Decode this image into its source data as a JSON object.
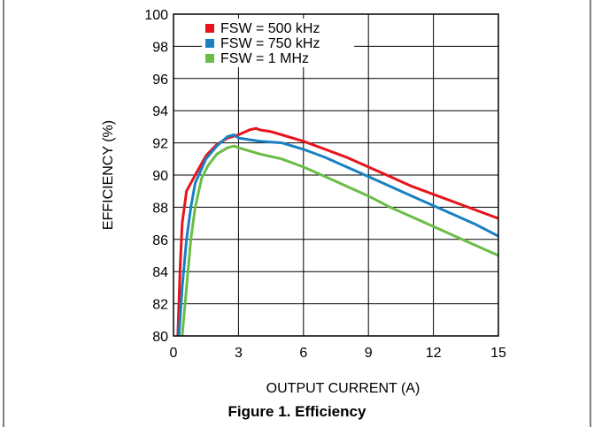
{
  "figure_caption": "Figure 1. Efficiency",
  "colors": {
    "fsw_500khz": "#e8141b",
    "fsw_750khz": "#1a81c1",
    "fsw_1mhz": "#6abd45",
    "grid": "#000000",
    "border": "#000000"
  },
  "chart_data": {
    "type": "line",
    "title": "",
    "xlabel": "OUTPUT CURRENT (A)",
    "ylabel": "EFFICIENCY (%)",
    "xlim": [
      0,
      15
    ],
    "ylim": [
      80,
      100
    ],
    "xticks": [
      0,
      3,
      6,
      9,
      12,
      15
    ],
    "yticks": [
      80,
      82,
      84,
      86,
      88,
      90,
      92,
      94,
      96,
      98,
      100
    ],
    "grid": true,
    "legend_position": "top-left",
    "series": [
      {
        "name": "FSW = 500 kHz",
        "color": "#e8141b",
        "points": [
          [
            0.2,
            80
          ],
          [
            0.3,
            84
          ],
          [
            0.4,
            87
          ],
          [
            0.6,
            89
          ],
          [
            1.0,
            90
          ],
          [
            1.5,
            91.2
          ],
          [
            2.0,
            91.9
          ],
          [
            2.5,
            92.3
          ],
          [
            3.0,
            92.5
          ],
          [
            3.5,
            92.8
          ],
          [
            3.8,
            92.9
          ],
          [
            4.0,
            92.8
          ],
          [
            4.5,
            92.7
          ],
          [
            5,
            92.5
          ],
          [
            6,
            92.1
          ],
          [
            7,
            91.6
          ],
          [
            8,
            91.1
          ],
          [
            9,
            90.5
          ],
          [
            10,
            89.9
          ],
          [
            11,
            89.3
          ],
          [
            12,
            88.8
          ],
          [
            13,
            88.3
          ],
          [
            14,
            87.8
          ],
          [
            15,
            87.3
          ]
        ]
      },
      {
        "name": "FSW = 750 kHz",
        "color": "#1a81c1",
        "points": [
          [
            0.25,
            80
          ],
          [
            0.4,
            83
          ],
          [
            0.6,
            86
          ],
          [
            0.8,
            88
          ],
          [
            1.0,
            89.5
          ],
          [
            1.5,
            91
          ],
          [
            2.0,
            91.8
          ],
          [
            2.5,
            92.4
          ],
          [
            2.8,
            92.5
          ],
          [
            3.0,
            92.3
          ],
          [
            3.5,
            92.2
          ],
          [
            4,
            92.1
          ],
          [
            5,
            92
          ],
          [
            6,
            91.6
          ],
          [
            7,
            91.1
          ],
          [
            8,
            90.5
          ],
          [
            9,
            89.9
          ],
          [
            10,
            89.3
          ],
          [
            11,
            88.7
          ],
          [
            12,
            88.1
          ],
          [
            13,
            87.5
          ],
          [
            14,
            86.9
          ],
          [
            15,
            86.2
          ]
        ]
      },
      {
        "name": "FSW = 1 MHz",
        "color": "#6abd45",
        "points": [
          [
            0.4,
            80
          ],
          [
            0.6,
            83
          ],
          [
            0.8,
            86
          ],
          [
            1.0,
            88
          ],
          [
            1.3,
            89.8
          ],
          [
            1.6,
            90.6
          ],
          [
            2.0,
            91.3
          ],
          [
            2.5,
            91.7
          ],
          [
            2.8,
            91.8
          ],
          [
            3.0,
            91.7
          ],
          [
            3.5,
            91.5
          ],
          [
            4,
            91.3
          ],
          [
            5,
            91
          ],
          [
            6,
            90.5
          ],
          [
            7,
            89.9
          ],
          [
            8,
            89.3
          ],
          [
            9,
            88.7
          ],
          [
            10,
            88
          ],
          [
            11,
            87.4
          ],
          [
            12,
            86.8
          ],
          [
            13,
            86.2
          ],
          [
            14,
            85.6
          ],
          [
            15,
            85.0
          ]
        ]
      }
    ]
  }
}
